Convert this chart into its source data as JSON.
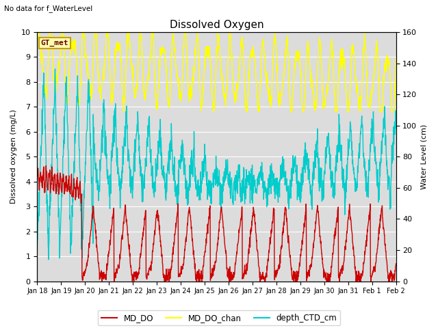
{
  "title": "Dissolved Oxygen",
  "top_left_text": "No data for f_WaterLevel",
  "ylabel_left": "Dissolved oxygen (mg/L)",
  "ylabel_right": "Water Level (cm)",
  "ylim_left": [
    0,
    10.0
  ],
  "ylim_right": [
    0,
    160
  ],
  "yticks_left": [
    0.0,
    1.0,
    2.0,
    3.0,
    4.0,
    5.0,
    6.0,
    7.0,
    8.0,
    9.0,
    10.0
  ],
  "yticks_right": [
    0,
    20,
    40,
    60,
    80,
    100,
    120,
    140,
    160
  ],
  "xticklabels": [
    "Jan 18",
    "Jan 19",
    "Jan 20",
    "Jan 21",
    "Jan 22",
    "Jan 23",
    "Jan 24",
    "Jan 25",
    "Jan 26",
    "Jan 27",
    "Jan 28",
    "Jan 29",
    "Jan 30",
    "Jan 31",
    "Feb 1",
    "Feb 2"
  ],
  "background_color": "#ffffff",
  "plot_bg_color": "#dcdcdc",
  "legend_box_color": "#c8a000",
  "legend_box_bg": "#ffffb0",
  "legend_box_text": "GT_met",
  "grid_color": "#ffffff",
  "colors": {
    "MD_DO": "#cc0000",
    "MD_DO_chan": "#ffff00",
    "depth_CTD_cm": "#00cccc"
  },
  "linewidths": {
    "MD_DO": 1.0,
    "MD_DO_chan": 1.0,
    "depth_CTD_cm": 1.0
  }
}
